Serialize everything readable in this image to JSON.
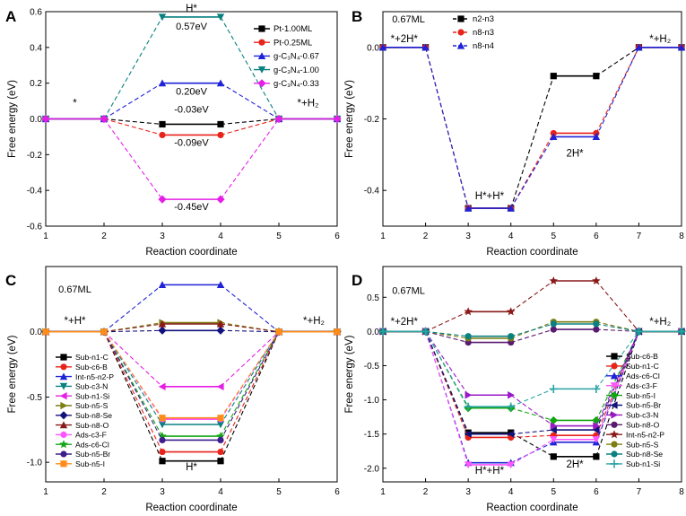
{
  "chart_data": [
    {
      "panel": "A",
      "type": "line",
      "style": "step-dashed",
      "xlabel": "Reaction coordinate",
      "ylabel": "Free energy (eV)",
      "xlim": [
        1,
        6
      ],
      "ylim": [
        -0.6,
        0.6
      ],
      "xticks": [
        "1",
        "2",
        "3",
        "4",
        "5",
        "6"
      ],
      "yticks": [
        "-0.6",
        "-0.4",
        "-0.2",
        "0.0",
        "0.2",
        "0.4",
        "0.6"
      ],
      "legend_position": "top-right",
      "annotations": [
        {
          "text": "H*",
          "x": 3.5,
          "y": 0.6
        },
        {
          "text": "*",
          "x": 1.5,
          "y": 0.07
        },
        {
          "text": "*+H₂",
          "x": 5.5,
          "y": 0.07
        },
        {
          "text": "0.57eV",
          "x": 3.5,
          "y": 0.5
        },
        {
          "text": "0.20eV",
          "x": 3.5,
          "y": 0.135
        },
        {
          "text": "-0.03eV",
          "x": 3.5,
          "y": 0.035
        },
        {
          "text": "-0.09eV",
          "x": 3.5,
          "y": -0.15
        },
        {
          "text": "-0.45eV",
          "x": 3.5,
          "y": -0.51
        }
      ],
      "series": [
        {
          "name": "Pt-1.00ML",
          "color": "#000000",
          "marker": "square",
          "value": -0.03
        },
        {
          "name": "Pt-0.25ML",
          "color": "#e8231a",
          "marker": "circle",
          "value": -0.09
        },
        {
          "name": "g-C₃N₄-0.67",
          "color": "#1f22d6",
          "marker": "triangle",
          "value": 0.2
        },
        {
          "name": "g-C₃N₄-1.00",
          "color": "#0a8080",
          "marker": "triangle-down",
          "value": 0.57
        },
        {
          "name": "g-C₃N₄-0.33",
          "color": "#e61fe6",
          "marker": "diamond",
          "value": -0.45
        }
      ]
    },
    {
      "panel": "B",
      "type": "line",
      "style": "step-dashed",
      "xlabel": "Reaction coordinate",
      "ylabel": "Free energy (eV)",
      "xlim": [
        1,
        8
      ],
      "ylim": [
        -0.5,
        0.1
      ],
      "xticks": [
        "1",
        "2",
        "3",
        "4",
        "5",
        "6",
        "7",
        "8"
      ],
      "yticks": [
        "-0.4",
        "-0.2",
        "0.0"
      ],
      "legend_position": "top-center",
      "annotations": [
        {
          "text": "0.67ML",
          "x": 1.6,
          "y": 0.07
        },
        {
          "text": "*+2H*",
          "x": 1.5,
          "y": 0.015
        },
        {
          "text": "*+H₂",
          "x": 7.5,
          "y": 0.015
        },
        {
          "text": "H*+H*",
          "x": 3.5,
          "y": -0.425
        },
        {
          "text": "2H*",
          "x": 5.5,
          "y": -0.305
        }
      ],
      "series": [
        {
          "name": "n2-n3",
          "color": "#000000",
          "marker": "square",
          "values": [
            0,
            -0.45,
            -0.08,
            0
          ]
        },
        {
          "name": "n8-n3",
          "color": "#e8231a",
          "marker": "circle",
          "values": [
            0,
            -0.45,
            -0.24,
            0
          ]
        },
        {
          "name": "n8-n4",
          "color": "#1f22d6",
          "marker": "triangle",
          "values": [
            0,
            -0.45,
            -0.25,
            0
          ]
        }
      ]
    },
    {
      "panel": "C",
      "type": "line",
      "style": "step-dashed",
      "xlabel": "Reaction coordinate",
      "ylabel": "Free energy (eV)",
      "xlim": [
        1,
        6
      ],
      "ylim": [
        -1.15,
        0.5
      ],
      "xticks": [
        "1",
        "2",
        "3",
        "4",
        "5",
        "6"
      ],
      "yticks": [
        "-1.0",
        "-0.5",
        "0.0"
      ],
      "legend_position": "bottom-left",
      "annotations": [
        {
          "text": "0.67ML",
          "x": 1.5,
          "y": 0.3
        },
        {
          "text": "*+H*",
          "x": 1.5,
          "y": 0.06
        },
        {
          "text": "*+H₂",
          "x": 5.6,
          "y": 0.06
        },
        {
          "text": "H*",
          "x": 3.5,
          "y": -1.06
        }
      ],
      "series": [
        {
          "name": "Sub-n1-C",
          "color": "#000000",
          "marker": "square",
          "value": -0.99
        },
        {
          "name": "Sub-c6-B",
          "color": "#e8231a",
          "marker": "circle",
          "value": -0.92
        },
        {
          "name": "Int-n5-n2-P",
          "color": "#1f22d6",
          "marker": "triangle",
          "value": 0.36
        },
        {
          "name": "Sub-c3-N",
          "color": "#0a8080",
          "marker": "triangle-down",
          "value": -0.71
        },
        {
          "name": "Sub-n1-Si",
          "color": "#e61fe6",
          "marker": "triangle-left",
          "value": -0.42
        },
        {
          "name": "Sub-n5-S",
          "color": "#7d7d10",
          "marker": "triangle-right",
          "value": 0.07
        },
        {
          "name": "Sub-n8-Se",
          "color": "#12127d",
          "marker": "diamond",
          "value": 0.01
        },
        {
          "name": "Sub-n8-O",
          "color": "#8a1a1a",
          "marker": "triangle",
          "value": 0.06
        },
        {
          "name": "Ads-c3-F",
          "color": "#ff55ff",
          "marker": "circle",
          "value": -0.67
        },
        {
          "name": "Ads-c6-Cl",
          "color": "#13a513",
          "marker": "star",
          "value": -0.8
        },
        {
          "name": "Sub-n5-Br",
          "color": "#3d1e8c",
          "marker": "circle",
          "value": -0.83
        },
        {
          "name": "Sub-n5-I",
          "color": "#ff8c1a",
          "marker": "square",
          "value": -0.66
        }
      ]
    },
    {
      "panel": "D",
      "type": "line",
      "style": "step-dashed",
      "xlabel": "Reaction coordinate",
      "ylabel": "Free energy (eV)",
      "xlim": [
        1,
        8
      ],
      "ylim": [
        -2.2,
        0.95
      ],
      "xticks": [
        "1",
        "2",
        "3",
        "4",
        "5",
        "6",
        "7",
        "8"
      ],
      "yticks": [
        "-2.0",
        "-1.5",
        "-1.0",
        "-0.5",
        "0.0",
        "0.5"
      ],
      "legend_position": "bottom-right",
      "annotations": [
        {
          "text": "0.67ML",
          "x": 1.6,
          "y": 0.55
        },
        {
          "text": "*+2H*",
          "x": 1.5,
          "y": 0.1
        },
        {
          "text": "*+H₂",
          "x": 7.5,
          "y": 0.1
        },
        {
          "text": "H*+H*",
          "x": 3.5,
          "y": -2.08
        },
        {
          "text": "2H*",
          "x": 5.5,
          "y": -1.99
        }
      ],
      "series": [
        {
          "name": "Sub-c6-B",
          "color": "#000000",
          "marker": "square",
          "values": [
            0,
            -1.48,
            -1.83,
            0
          ]
        },
        {
          "name": "Sub-n1-C",
          "color": "#e8231a",
          "marker": "circle",
          "values": [
            0,
            -1.55,
            -1.52,
            0
          ]
        },
        {
          "name": "Ads-c6-Cl",
          "color": "#1f22d6",
          "marker": "triangle",
          "values": [
            0,
            -1.92,
            -1.62,
            0
          ]
        },
        {
          "name": "Ads-c3-F",
          "color": "#ff55ff",
          "marker": "triangle-down",
          "values": [
            0,
            -1.95,
            -1.58,
            0
          ]
        },
        {
          "name": "Sub-n5-I",
          "color": "#13a513",
          "marker": "diamond",
          "values": [
            0,
            -1.12,
            -1.3,
            0
          ]
        },
        {
          "name": "Sub-n5-Br",
          "color": "#12127d",
          "marker": "triangle-left",
          "values": [
            0,
            -1.5,
            -1.44,
            0
          ]
        },
        {
          "name": "Sub-c3-N",
          "color": "#9a18c8",
          "marker": "triangle-right",
          "values": [
            0,
            -0.93,
            -1.38,
            0
          ]
        },
        {
          "name": "Sub-n8-O",
          "color": "#5a1a70",
          "marker": "circle",
          "values": [
            0,
            -0.16,
            0.03,
            0
          ]
        },
        {
          "name": "Int-n5-n2-P",
          "color": "#8a1a1a",
          "marker": "star",
          "values": [
            0,
            0.29,
            0.74,
            0
          ]
        },
        {
          "name": "Sub-n5-S",
          "color": "#7d7d10",
          "marker": "circle",
          "values": [
            0,
            -0.1,
            0.14,
            0
          ]
        },
        {
          "name": "Sub-n8-Se",
          "color": "#0a8080",
          "marker": "circle",
          "values": [
            0,
            -0.07,
            0.11,
            0
          ]
        },
        {
          "name": "Sub-n1-Si",
          "color": "#2aa3a3",
          "marker": "plus",
          "values": [
            0,
            -1.1,
            -0.84,
            0
          ]
        }
      ]
    }
  ]
}
